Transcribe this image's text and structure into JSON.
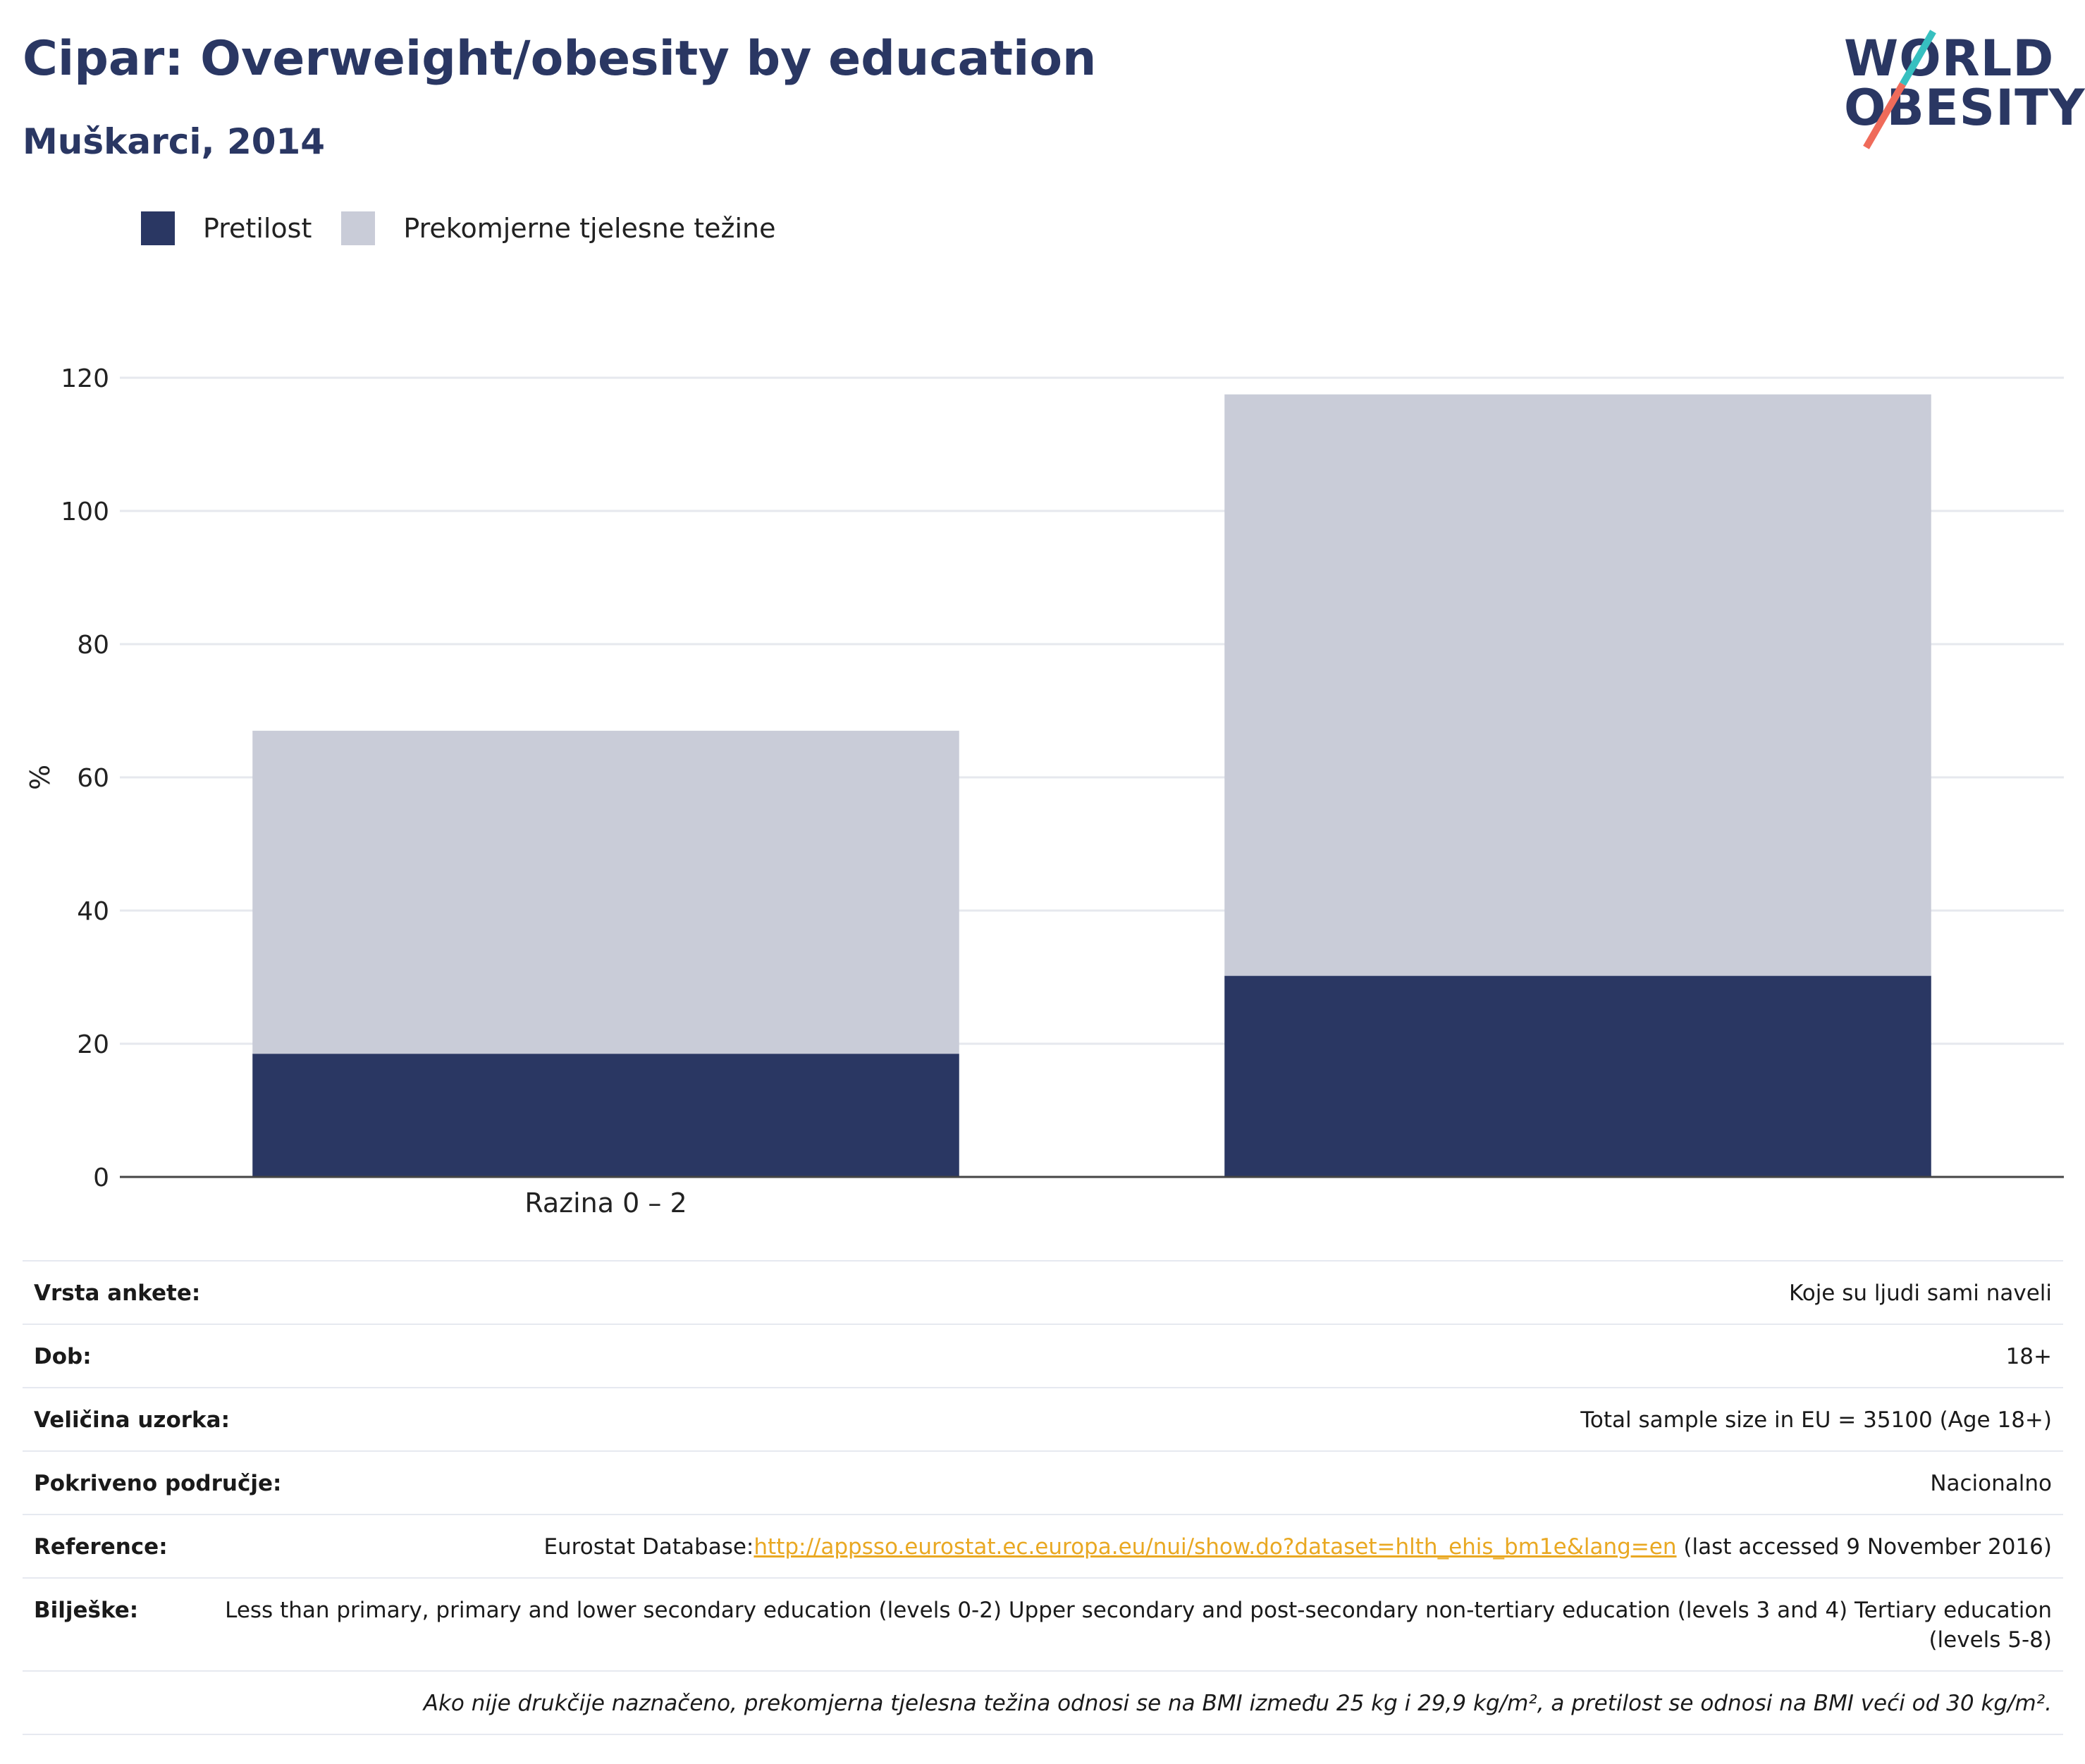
{
  "header": {
    "title": "Cipar: Overweight/obesity by education",
    "subtitle": "Muškarci, 2014"
  },
  "logo": {
    "line1": "WORLD",
    "line2": "OBESITY",
    "accent_teal": "#37c0c0",
    "accent_coral": "#ef6b5a"
  },
  "colors": {
    "obesity": "#2a3763",
    "overweight": "#c9ccd8",
    "title": "#2a3763",
    "link": "#e9a822"
  },
  "legend": {
    "items": [
      {
        "label": "Pretilost",
        "color": "#2a3763"
      },
      {
        "label": "Prekomjerne tjelesne težine",
        "color": "#c9ccd8"
      }
    ]
  },
  "chart_data": {
    "type": "bar",
    "stacked": true,
    "title": "Cipar: Overweight/obesity by education",
    "subtitle": "Muškarci, 2014",
    "xlabel": "",
    "ylabel": "%",
    "ylim": [
      0,
      120
    ],
    "yticks": [
      0,
      20,
      40,
      60,
      80,
      100,
      120
    ],
    "grid": true,
    "legend_position": "top-left",
    "categories": [
      "Razina 0 – 2",
      ""
    ],
    "series": [
      {
        "name": "Pretilost",
        "color": "#2a3763",
        "values": [
          18.5,
          30.2
        ]
      },
      {
        "name": "Prekomjerne tjelesne težine",
        "color": "#c9ccd8",
        "values": [
          48.5,
          87.3
        ]
      }
    ]
  },
  "info": {
    "rows": [
      {
        "label": "Vrsta ankete:",
        "value": "Koje su ljudi sami naveli"
      },
      {
        "label": "Dob:",
        "value": "18+"
      },
      {
        "label": "Veličina uzorka:",
        "value": "Total sample size in EU = 35100 (Age 18+)"
      },
      {
        "label": "Pokriveno područje:",
        "value": "Nacionalno"
      }
    ],
    "reference": {
      "label": "Reference:",
      "prefix": "Eurostat Database:",
      "link": "http://appsso.eurostat.ec.europa.eu/nui/show.do?dataset=hlth_ehis_bm1e&lang=en",
      "suffix": " (last accessed 9 November 2016)"
    },
    "notes": {
      "label": "Bilješke:",
      "value": "Less than primary, primary and lower secondary education (levels 0-2) Upper secondary and post-secondary non-tertiary education (levels 3 and 4) Tertiary education (levels 5-8)"
    },
    "footnote": "Ako nije drukčije naznačeno, prekomjerna tjelesna težina odnosi se na BMI između 25 kg i 29,9 kg/m², a pretilost se odnosi na BMI veći od 30 kg/m²."
  }
}
